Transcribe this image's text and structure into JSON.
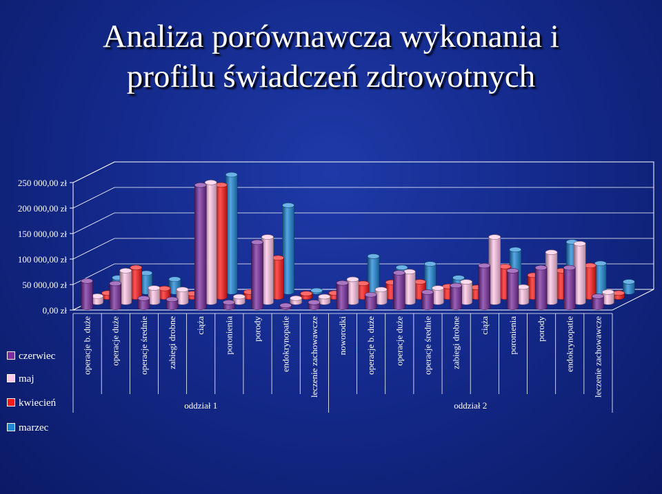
{
  "title": {
    "line1": "Analiza porównawcza wykonania i",
    "line2": "profilu świadczeń zdrowotnych"
  },
  "colors": {
    "czerwiec": "#7b2ea0",
    "maj": "#ffc7e8",
    "kwiecien": "#ff1a1a",
    "marzec": "#1e88d8",
    "text": "#ffffff"
  },
  "chart_data": {
    "type": "bar",
    "title": "Analiza porównawcza wykonania i profilu świadczeń zdrowotnych",
    "ylim": [
      0,
      250000
    ],
    "y_ticks": [
      "0,00 zł",
      "50 000,00 zł",
      "100 000,00 zł",
      "150 000,00 zł",
      "200 000,00 zł",
      "250 000,00 zł"
    ],
    "y_tick_values": [
      0,
      50000,
      100000,
      150000,
      200000,
      250000
    ],
    "categories": [
      "operacje b. duże",
      "operacje duże",
      "operacje średnie",
      "zabiegi drobne",
      "ciąża",
      "poronienia",
      "porody",
      "endokrynopatie",
      "leczenie zachowawcze",
      "noworodki",
      "operacje b. duże",
      "operacje duże",
      "operacje średnie",
      "zabiegi drobne",
      "ciąża",
      "poronienia",
      "porody",
      "endokrynopatie",
      "leczenie zachowawcze"
    ],
    "groups": [
      {
        "label": "oddział 1",
        "count": 9
      },
      {
        "label": "oddział 2",
        "count": 10
      }
    ],
    "series": [
      {
        "name": "czerwiec",
        "values": [
          52000,
          47000,
          18000,
          16000,
          240000,
          10000,
          128000,
          4000,
          10000,
          48000,
          25000,
          68000,
          30000,
          43000,
          82000,
          72000,
          78000,
          78000,
          22000
        ]
      },
      {
        "name": "maj",
        "values": [
          12000,
          62000,
          28000,
          25000,
          235000,
          11000,
          128000,
          8000,
          11000,
          45000,
          25000,
          60000,
          28000,
          40000,
          128000,
          30000,
          98000,
          115000,
          20000
        ]
      },
      {
        "name": "kwiecień",
        "values": [
          8000,
          58000,
          17000,
          7000,
          220000,
          10000,
          77000,
          7000,
          8000,
          27000,
          29000,
          30000,
          21000,
          19000,
          60000,
          43000,
          52000,
          62000,
          8000
        ]
      },
      {
        "name": "marzec",
        "values": [
          28000,
          37000,
          25000,
          3000,
          230000,
          1000,
          170000,
          3000,
          0,
          70000,
          48000,
          55000,
          28000,
          15000,
          83000,
          0,
          98000,
          56000,
          20000
        ]
      }
    ],
    "legend": [
      "czerwiec",
      "maj",
      "kwiecień",
      "marzec"
    ],
    "legend_position": "left",
    "grid": true
  }
}
